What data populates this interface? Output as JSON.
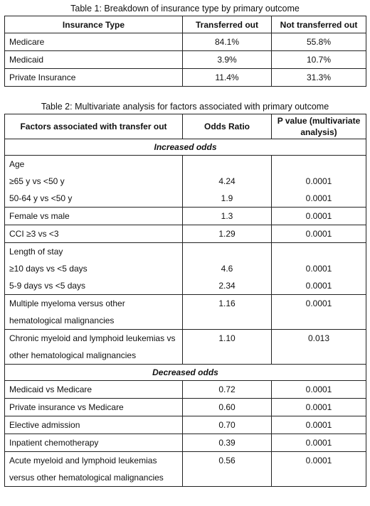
{
  "table1": {
    "caption": "Table 1: Breakdown of insurance type by primary outcome",
    "headers": [
      "Insurance Type",
      "Transferred out",
      "Not transferred out"
    ],
    "rows": [
      [
        "Medicare",
        "84.1%",
        "55.8%"
      ],
      [
        "Medicaid",
        "3.9%",
        "10.7%"
      ],
      [
        "Private Insurance",
        "11.4%",
        "31.3%"
      ]
    ]
  },
  "table2": {
    "caption": "Table 2: Multivariate analysis for factors associated with primary outcome",
    "headers": [
      "Factors associated with transfer out",
      "Odds Ratio",
      "P value (multivariate analysis)"
    ],
    "increased_label": "Increased odds",
    "decreased_label": "Decreased odds",
    "age": {
      "label": "Age",
      "rows": [
        [
          "≥65 y vs <50 y",
          "4.24",
          "0.0001"
        ],
        [
          "50-64 y vs <50 y",
          "1.9",
          "0.0001"
        ]
      ]
    },
    "sex": [
      "Female vs male",
      "1.3",
      "0.0001"
    ],
    "cci": [
      "CCI ≥3 vs <3",
      "1.29",
      "0.0001"
    ],
    "los": {
      "label": "Length of stay",
      "rows": [
        [
          "≥10 days vs <5 days",
          "4.6",
          "0.0001"
        ],
        [
          "5-9 days vs <5 days",
          "2.34",
          "0.0001"
        ]
      ]
    },
    "mm": {
      "line1": "Multiple myeloma versus other",
      "line2": "hematological malignancies",
      "or": "1.16",
      "p": "0.0001"
    },
    "cml": {
      "line1": "Chronic myeloid and lymphoid leukemias vs",
      "line2": "other hematological malignancies",
      "or": "1.10",
      "p": "0.013"
    },
    "decreased_rows": [
      [
        "Medicaid vs Medicare",
        "0.72",
        "0.0001"
      ],
      [
        "Private insurance vs Medicare",
        "0.60",
        "0.0001"
      ],
      [
        "Elective admission",
        "0.70",
        "0.0001"
      ],
      [
        "Inpatient chemotherapy",
        "0.39",
        "0.0001"
      ]
    ],
    "aml": {
      "line1": "Acute myeloid and lymphoid leukemias",
      "line2": "versus other hematological malignancies",
      "or": "0.56",
      "p": "0.0001"
    }
  }
}
